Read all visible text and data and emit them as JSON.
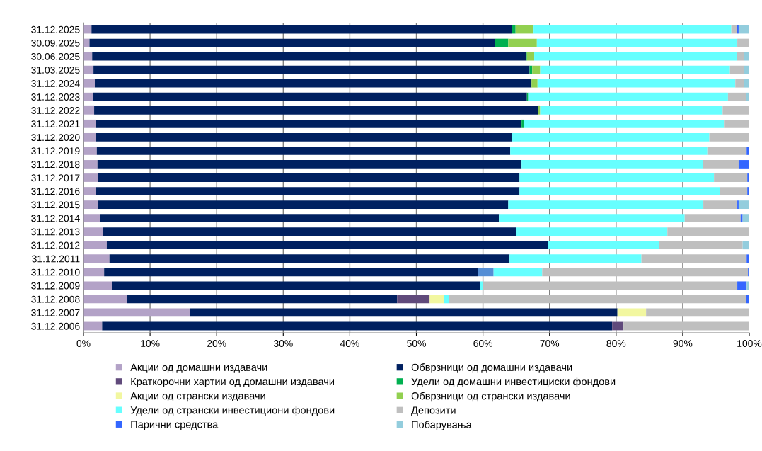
{
  "chart_data": {
    "type": "bar",
    "orientation": "horizontal",
    "stacked": true,
    "categories": [
      "31.12.2025",
      "30.09.2025",
      "30.06.2025",
      "31.03.2025",
      "31.12.2024",
      "31.12.2023",
      "31.12.2022",
      "31.12.2021",
      "31.12.2020",
      "31.12.2019",
      "31.12.2018",
      "31.12.2017",
      "31.12.2016",
      "31.12.2015",
      "31.12.2014",
      "31.12.2013",
      "31.12.2012",
      "31.12.2011",
      "31.12.2010",
      "31.12.2009",
      "31.12.2008",
      "31.12.2007",
      "31.12.2006"
    ],
    "series": [
      {
        "name": "Акции од домашни издавачи",
        "color": "#b3a2c7",
        "values": [
          1.2,
          0.9,
          1.3,
          1.5,
          1.7,
          1.4,
          1.6,
          1.9,
          1.9,
          2.0,
          2.1,
          2.2,
          1.9,
          2.2,
          2.5,
          2.9,
          3.5,
          3.9,
          3.1,
          4.3,
          6.5,
          16.0,
          2.8
        ]
      },
      {
        "name": "Обврзници од домашни издавачи",
        "color": "#002060",
        "values": [
          63.2,
          60.9,
          65.2,
          65.5,
          65.6,
          65.2,
          66.7,
          63.9,
          62.4,
          62.1,
          63.7,
          63.3,
          63.6,
          61.6,
          59.9,
          62.1,
          66.3,
          60.1,
          56.2,
          55.3,
          40.6,
          64.2,
          76.6
        ]
      },
      {
        "name": "Краткорочни хартии од домашни издавачи",
        "color": "#604a7b",
        "values": [
          0,
          0,
          0,
          0,
          0,
          0,
          0,
          0,
          0,
          0,
          0,
          0,
          0,
          0,
          0,
          0,
          0,
          0,
          0,
          0,
          4.9,
          0,
          1.7
        ]
      },
      {
        "name": "Удели од домашни инвестициски фондови",
        "color": "#00b050",
        "values": [
          0.5,
          2.0,
          0.1,
          0.4,
          0,
          0.2,
          0,
          0.4,
          0,
          0,
          0,
          0,
          0,
          0,
          0,
          0,
          0,
          0,
          0,
          0,
          0,
          0,
          0
        ]
      },
      {
        "name": "Акции од странски издавачи",
        "color": "#f2f7a0",
        "values": [
          0,
          0,
          0,
          0,
          0,
          0,
          0,
          0,
          0,
          0,
          0,
          0,
          0,
          0,
          0,
          0,
          0,
          0,
          0,
          0,
          2.2,
          4.3,
          0
        ]
      },
      {
        "name": "Обврзници од странски издавачи",
        "color": "#92d050",
        "values": [
          2.7,
          4.3,
          1.1,
          1.2,
          0.9,
          0,
          0.3,
          0,
          0,
          0,
          0,
          0,
          0,
          0,
          0,
          0,
          0,
          0,
          0,
          0,
          0,
          0,
          0
        ]
      },
      {
        "color": "#558ed5",
        "values": [
          0,
          0,
          0,
          0,
          0,
          0,
          0,
          0,
          0,
          0,
          0,
          0,
          0,
          0,
          0,
          0,
          0,
          0,
          2.3,
          0,
          0,
          0,
          0
        ]
      },
      {
        "name": "Удели од странски инвестициони фондови",
        "color": "#66ffff",
        "values": [
          29.7,
          30.1,
          30.4,
          28.5,
          29.7,
          30.0,
          27.4,
          30.0,
          29.7,
          29.6,
          27.2,
          29.2,
          30.1,
          29.3,
          27.9,
          22.7,
          16.7,
          19.8,
          7.3,
          0.4,
          0.7,
          0,
          0
        ]
      },
      {
        "name": "Депозити",
        "color": "#bfbfbf",
        "values": [
          0.8,
          1.7,
          1.1,
          2.1,
          1.3,
          2.7,
          4.0,
          3.8,
          6.0,
          5.9,
          5.4,
          5.0,
          4.1,
          5.1,
          8.4,
          12.3,
          12.5,
          15.8,
          30.9,
          38.2,
          44.6,
          15.5,
          18.9
        ]
      },
      {
        "name": "Парични средства",
        "color": "#3366ff",
        "values": [
          0.3,
          0.1,
          0,
          0,
          0,
          0,
          0,
          0,
          0,
          0.4,
          1.6,
          0.3,
          0.3,
          0.2,
          0.3,
          0,
          0,
          0.4,
          0.2,
          1.4,
          0.5,
          0,
          0
        ]
      },
      {
        "name": "Побарувања",
        "color": "#93cddd",
        "values": [
          1.6,
          0,
          0.8,
          0.8,
          0.8,
          0.5,
          0,
          0,
          0,
          0,
          0,
          0,
          0,
          1.6,
          1.0,
          0,
          1.0,
          0,
          0,
          0.4,
          0,
          0,
          0
        ]
      }
    ],
    "xlim": [
      0,
      100
    ],
    "xticks": [
      {
        "value": 0,
        "label": "0%"
      },
      {
        "value": 10,
        "label": "10%"
      },
      {
        "value": 20,
        "label": "20%"
      },
      {
        "value": 30,
        "label": "30%"
      },
      {
        "value": 40,
        "label": "40%"
      },
      {
        "value": 50,
        "label": "50%"
      },
      {
        "value": 60,
        "label": "60%"
      },
      {
        "value": 70,
        "label": "70%"
      },
      {
        "value": 80,
        "label": "80%"
      },
      {
        "value": 90,
        "label": "90%"
      },
      {
        "value": 100,
        "label": "100%"
      }
    ],
    "grid": "x",
    "legend": "bottom"
  }
}
